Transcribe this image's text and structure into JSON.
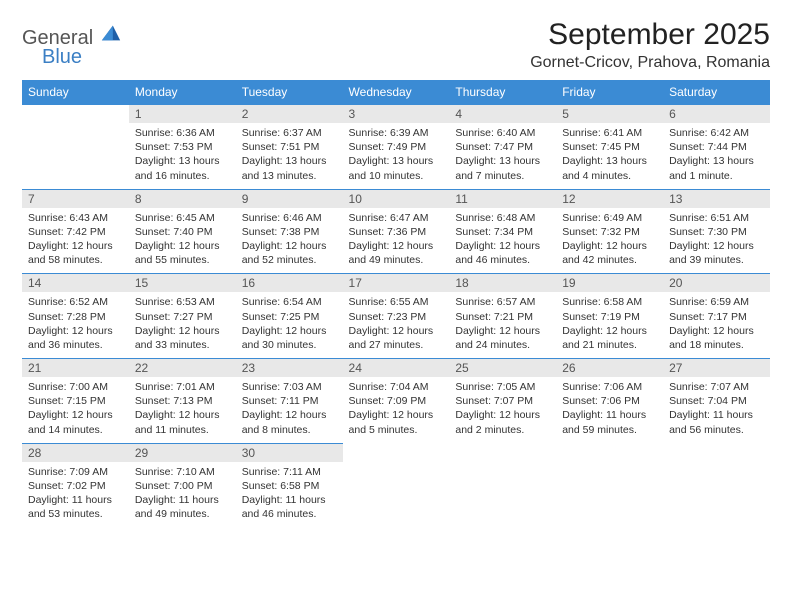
{
  "logo": {
    "general": "General",
    "blue": "Blue"
  },
  "title": "September 2025",
  "location": "Gornet-Cricov, Prahova, Romania",
  "colors": {
    "header_bg": "#3b8bd4",
    "daynum_bg": "#e8e8e8",
    "row_border": "#3b8bd4",
    "logo_accent": "#3b7fc4"
  },
  "weekdays": [
    "Sunday",
    "Monday",
    "Tuesday",
    "Wednesday",
    "Thursday",
    "Friday",
    "Saturday"
  ],
  "weeks": [
    [
      null,
      {
        "n": "1",
        "sr": "6:36 AM",
        "ss": "7:53 PM",
        "dl": "13 hours and 16 minutes."
      },
      {
        "n": "2",
        "sr": "6:37 AM",
        "ss": "7:51 PM",
        "dl": "13 hours and 13 minutes."
      },
      {
        "n": "3",
        "sr": "6:39 AM",
        "ss": "7:49 PM",
        "dl": "13 hours and 10 minutes."
      },
      {
        "n": "4",
        "sr": "6:40 AM",
        "ss": "7:47 PM",
        "dl": "13 hours and 7 minutes."
      },
      {
        "n": "5",
        "sr": "6:41 AM",
        "ss": "7:45 PM",
        "dl": "13 hours and 4 minutes."
      },
      {
        "n": "6",
        "sr": "6:42 AM",
        "ss": "7:44 PM",
        "dl": "13 hours and 1 minute."
      }
    ],
    [
      {
        "n": "7",
        "sr": "6:43 AM",
        "ss": "7:42 PM",
        "dl": "12 hours and 58 minutes."
      },
      {
        "n": "8",
        "sr": "6:45 AM",
        "ss": "7:40 PM",
        "dl": "12 hours and 55 minutes."
      },
      {
        "n": "9",
        "sr": "6:46 AM",
        "ss": "7:38 PM",
        "dl": "12 hours and 52 minutes."
      },
      {
        "n": "10",
        "sr": "6:47 AM",
        "ss": "7:36 PM",
        "dl": "12 hours and 49 minutes."
      },
      {
        "n": "11",
        "sr": "6:48 AM",
        "ss": "7:34 PM",
        "dl": "12 hours and 46 minutes."
      },
      {
        "n": "12",
        "sr": "6:49 AM",
        "ss": "7:32 PM",
        "dl": "12 hours and 42 minutes."
      },
      {
        "n": "13",
        "sr": "6:51 AM",
        "ss": "7:30 PM",
        "dl": "12 hours and 39 minutes."
      }
    ],
    [
      {
        "n": "14",
        "sr": "6:52 AM",
        "ss": "7:28 PM",
        "dl": "12 hours and 36 minutes."
      },
      {
        "n": "15",
        "sr": "6:53 AM",
        "ss": "7:27 PM",
        "dl": "12 hours and 33 minutes."
      },
      {
        "n": "16",
        "sr": "6:54 AM",
        "ss": "7:25 PM",
        "dl": "12 hours and 30 minutes."
      },
      {
        "n": "17",
        "sr": "6:55 AM",
        "ss": "7:23 PM",
        "dl": "12 hours and 27 minutes."
      },
      {
        "n": "18",
        "sr": "6:57 AM",
        "ss": "7:21 PM",
        "dl": "12 hours and 24 minutes."
      },
      {
        "n": "19",
        "sr": "6:58 AM",
        "ss": "7:19 PM",
        "dl": "12 hours and 21 minutes."
      },
      {
        "n": "20",
        "sr": "6:59 AM",
        "ss": "7:17 PM",
        "dl": "12 hours and 18 minutes."
      }
    ],
    [
      {
        "n": "21",
        "sr": "7:00 AM",
        "ss": "7:15 PM",
        "dl": "12 hours and 14 minutes."
      },
      {
        "n": "22",
        "sr": "7:01 AM",
        "ss": "7:13 PM",
        "dl": "12 hours and 11 minutes."
      },
      {
        "n": "23",
        "sr": "7:03 AM",
        "ss": "7:11 PM",
        "dl": "12 hours and 8 minutes."
      },
      {
        "n": "24",
        "sr": "7:04 AM",
        "ss": "7:09 PM",
        "dl": "12 hours and 5 minutes."
      },
      {
        "n": "25",
        "sr": "7:05 AM",
        "ss": "7:07 PM",
        "dl": "12 hours and 2 minutes."
      },
      {
        "n": "26",
        "sr": "7:06 AM",
        "ss": "7:06 PM",
        "dl": "11 hours and 59 minutes."
      },
      {
        "n": "27",
        "sr": "7:07 AM",
        "ss": "7:04 PM",
        "dl": "11 hours and 56 minutes."
      }
    ],
    [
      {
        "n": "28",
        "sr": "7:09 AM",
        "ss": "7:02 PM",
        "dl": "11 hours and 53 minutes."
      },
      {
        "n": "29",
        "sr": "7:10 AM",
        "ss": "7:00 PM",
        "dl": "11 hours and 49 minutes."
      },
      {
        "n": "30",
        "sr": "7:11 AM",
        "ss": "6:58 PM",
        "dl": "11 hours and 46 minutes."
      },
      null,
      null,
      null,
      null
    ]
  ],
  "labels": {
    "sunrise": "Sunrise: ",
    "sunset": "Sunset: ",
    "daylight": "Daylight: "
  }
}
